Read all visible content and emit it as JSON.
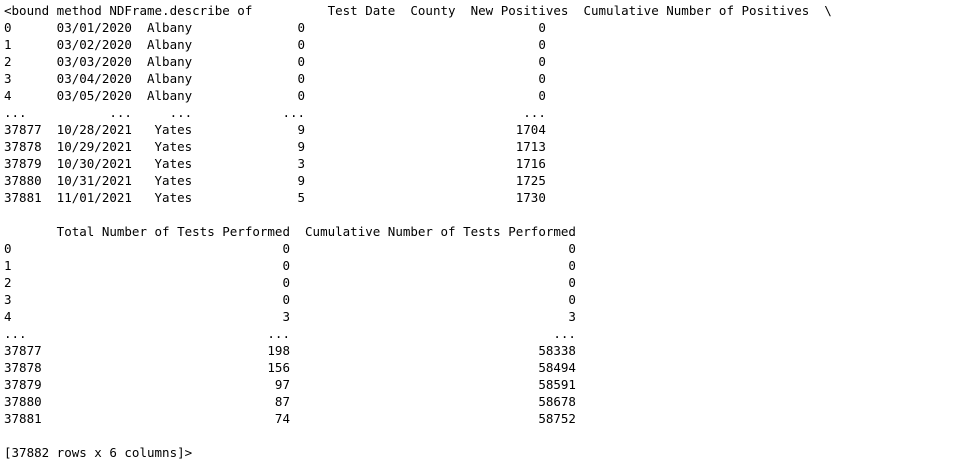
{
  "output": {
    "lines": [
      "<bound method NDFrame.describe of          Test Date  County  New Positives  Cumulative Number of Positives  \\",
      "0      03/01/2020  Albany              0                               0",
      "1      03/02/2020  Albany              0                               0",
      "2      03/03/2020  Albany              0                               0",
      "3      03/04/2020  Albany              0                               0",
      "4      03/05/2020  Albany              0                               0",
      "...           ...     ...            ...                             ...",
      "37877  10/28/2021   Yates              9                            1704",
      "37878  10/29/2021   Yates              9                            1713",
      "37879  10/30/2021   Yates              3                            1716",
      "37880  10/31/2021   Yates              9                            1725",
      "37881  11/01/2021   Yates              5                            1730",
      "",
      "       Total Number of Tests Performed  Cumulative Number of Tests Performed",
      "0                                    0                                     0",
      "1                                    0                                     0",
      "2                                    0                                     0",
      "3                                    0                                     0",
      "4                                    3                                     3",
      "...                                ...                                   ...",
      "37877                              198                                 58338",
      "37878                              156                                 58494",
      "37879                               97                                 58591",
      "37880                               87                                 58678",
      "37881                               74                                 58752",
      "",
      "[37882 rows x 6 columns]>"
    ]
  }
}
